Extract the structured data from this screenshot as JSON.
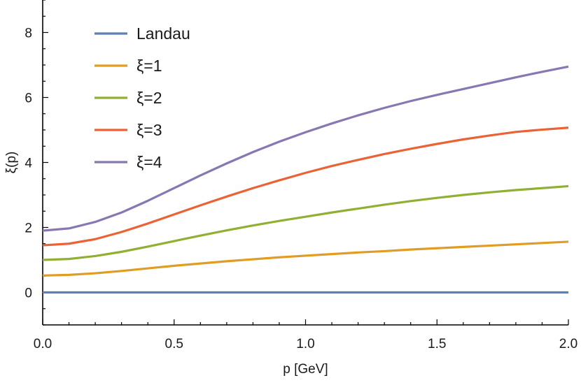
{
  "chart_data": {
    "type": "line",
    "xlabel": "p [GeV]",
    "ylabel": "ξ(p)",
    "xlim": [
      0,
      2.0
    ],
    "ylim": [
      -1,
      9
    ],
    "x_ticks": [
      0.0,
      0.5,
      1.0,
      1.5,
      2.0
    ],
    "x_tick_labels": [
      "0.0",
      "0.5",
      "1.0",
      "1.5",
      "2.0"
    ],
    "y_ticks": [
      0,
      2,
      4,
      6,
      8
    ],
    "y_tick_labels": [
      "0",
      "2",
      "4",
      "6",
      "8"
    ],
    "legend_position": "top-left",
    "grid": false,
    "x": [
      0.0,
      0.1,
      0.2,
      0.3,
      0.4,
      0.5,
      0.6,
      0.7,
      0.8,
      0.9,
      1.0,
      1.1,
      1.2,
      1.3,
      1.4,
      1.5,
      1.6,
      1.7,
      1.8,
      1.9,
      2.0
    ],
    "series": [
      {
        "name": "Landau",
        "color": "#5E81B5",
        "values": [
          0,
          0,
          0,
          0,
          0,
          0,
          0,
          0,
          0,
          0,
          0,
          0,
          0,
          0,
          0,
          0,
          0,
          0,
          0,
          0,
          0
        ]
      },
      {
        "name": "ξ=1",
        "color": "#E19C24",
        "values": [
          0.52,
          0.54,
          0.59,
          0.66,
          0.74,
          0.82,
          0.89,
          0.96,
          1.02,
          1.08,
          1.13,
          1.18,
          1.23,
          1.27,
          1.32,
          1.36,
          1.4,
          1.44,
          1.48,
          1.52,
          1.56
        ]
      },
      {
        "name": "ξ=2",
        "color": "#8FB032",
        "values": [
          1.0,
          1.03,
          1.12,
          1.25,
          1.41,
          1.58,
          1.75,
          1.91,
          2.06,
          2.2,
          2.33,
          2.46,
          2.58,
          2.7,
          2.81,
          2.91,
          3.0,
          3.08,
          3.15,
          3.21,
          3.27
        ]
      },
      {
        "name": "ξ=3",
        "color": "#EB6235",
        "values": [
          1.45,
          1.5,
          1.64,
          1.86,
          2.12,
          2.4,
          2.68,
          2.95,
          3.21,
          3.45,
          3.68,
          3.89,
          4.08,
          4.26,
          4.42,
          4.57,
          4.71,
          4.83,
          4.94,
          5.01,
          5.07
        ]
      },
      {
        "name": "ξ=4",
        "color": "#8778B3",
        "values": [
          1.9,
          1.97,
          2.17,
          2.46,
          2.82,
          3.21,
          3.6,
          3.97,
          4.32,
          4.64,
          4.93,
          5.2,
          5.45,
          5.68,
          5.89,
          6.08,
          6.26,
          6.44,
          6.62,
          6.79,
          6.95
        ]
      }
    ]
  }
}
